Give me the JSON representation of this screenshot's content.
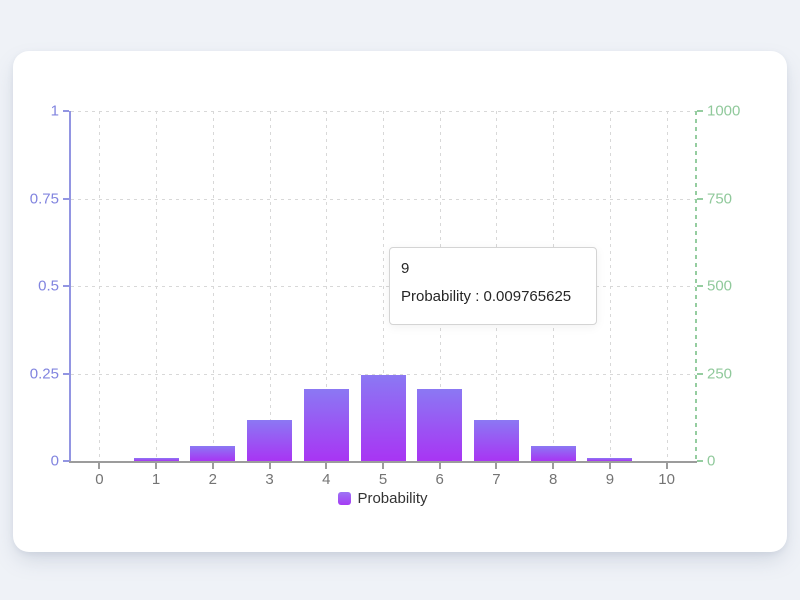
{
  "page": {
    "background": "#eff2f7",
    "card_background": "#ffffff"
  },
  "tooltip": {
    "title": "9",
    "line": "Probability : 0.009765625"
  },
  "chart_data": {
    "type": "bar",
    "title": "",
    "categories": [
      "0",
      "1",
      "2",
      "3",
      "4",
      "5",
      "6",
      "7",
      "8",
      "9",
      "10"
    ],
    "series": [
      {
        "name": "Probability",
        "values": [
          0.0009765625,
          0.009765625,
          0.0439453125,
          0.1171875,
          0.205078125,
          0.24609375,
          0.205078125,
          0.1171875,
          0.0439453125,
          0.009765625,
          0.0009765625
        ]
      }
    ],
    "x_axis": {
      "labels": [
        "0",
        "1",
        "2",
        "3",
        "4",
        "5",
        "6",
        "7",
        "8",
        "9",
        "10"
      ],
      "label_color": "#747474",
      "line_color": "#9c9c9c"
    },
    "y_axis_left": {
      "min": 0,
      "max": 1,
      "ticks": [
        "0",
        "0.25",
        "0.5",
        "0.75",
        "1"
      ],
      "label_color": "#8184df",
      "line_color": "#9295e2",
      "line_style": "solid"
    },
    "y_axis_right": {
      "min": 0,
      "max": 1000,
      "ticks": [
        "0",
        "250",
        "500",
        "750",
        "1000"
      ],
      "label_color": "#90c99b",
      "line_color": "#95cda0",
      "line_style": "dashed"
    },
    "grid": {
      "style": "dashed",
      "color": "#d8d8d8",
      "vertical_lines_at": "category-centers"
    },
    "legend": {
      "label": "Probability",
      "position": "bottom"
    },
    "bar_gradient": {
      "top": "#8b78f3",
      "bottom": "#a835f3"
    },
    "tooltip_shown_for_category": "9"
  }
}
